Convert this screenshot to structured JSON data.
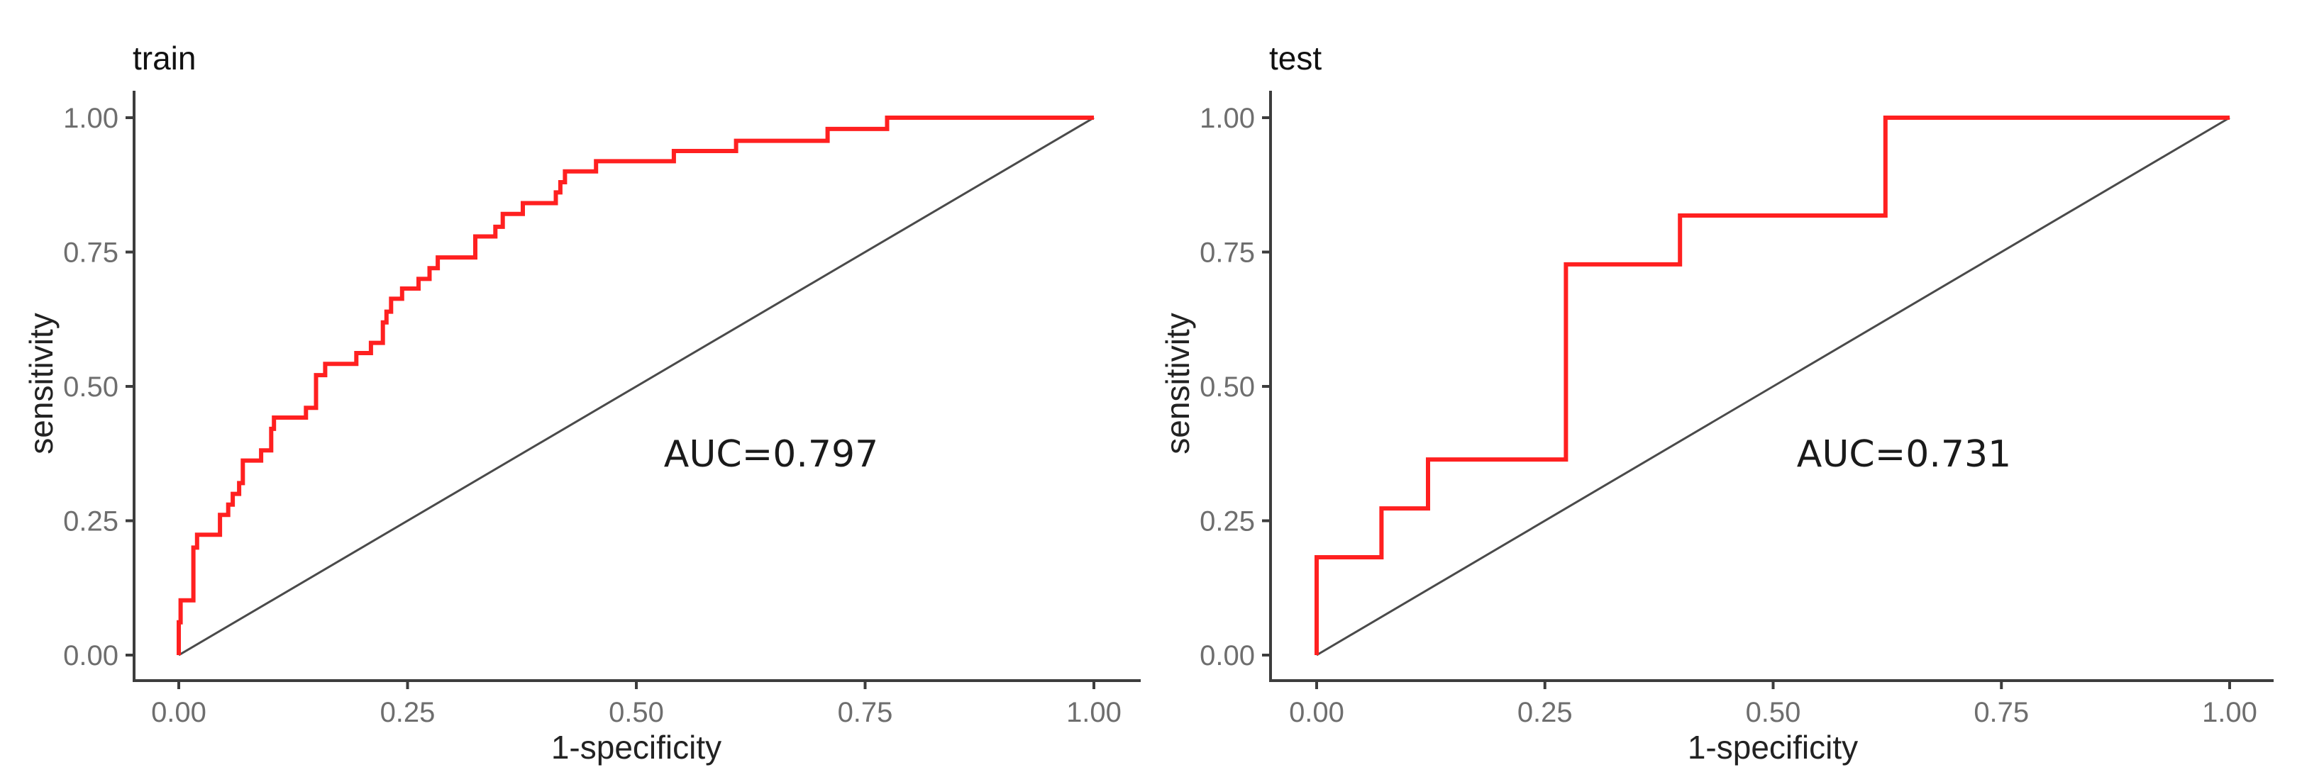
{
  "figure": {
    "background": "#ffffff",
    "roc_color": "#ff0000",
    "diagonal_color": "#4a4a4a",
    "axis_color": "#3d3d3d",
    "tick_label_color": "#6e6e6e"
  },
  "panels": [
    {
      "id": "train",
      "title": "train",
      "xlabel": "1-specificity",
      "ylabel": "sensitivity",
      "auc_label": "AUC=0.797",
      "x_ticks": [
        "0.00",
        "0.25",
        "0.50",
        "0.75",
        "1.00"
      ],
      "y_ticks": [
        "0.00",
        "0.25",
        "0.50",
        "0.75",
        "1.00"
      ]
    },
    {
      "id": "test",
      "title": "test",
      "xlabel": "1-specificity",
      "ylabel": "sensitivity",
      "auc_label": "AUC=0.731",
      "x_ticks": [
        "0.00",
        "0.25",
        "0.50",
        "0.75",
        "1.00"
      ],
      "y_ticks": [
        "0.00",
        "0.25",
        "0.50",
        "0.75",
        "1.00"
      ]
    }
  ],
  "chart_data": [
    {
      "type": "line",
      "title": "train",
      "xlabel": "1-specificity",
      "ylabel": "sensitivity",
      "xlim": [
        0,
        1
      ],
      "ylim": [
        0,
        1
      ],
      "x_ticks": [
        0,
        0.25,
        0.5,
        0.75,
        1.0
      ],
      "y_ticks": [
        0,
        0.25,
        0.5,
        0.75,
        1.0
      ],
      "grid": false,
      "legend": null,
      "annotations": [
        {
          "text": "AUC=0.797",
          "x": 0.67,
          "y": 0.37
        }
      ],
      "series": [
        {
          "name": "ROC",
          "color": "#ff0000",
          "step": true,
          "points": [
            [
              0.0,
              0.0
            ],
            [
              0.0,
              0.061
            ],
            [
              0.002,
              0.061
            ],
            [
              0.002,
              0.102
            ],
            [
              0.016,
              0.102
            ],
            [
              0.016,
              0.2
            ],
            [
              0.02,
              0.2
            ],
            [
              0.02,
              0.224
            ],
            [
              0.045,
              0.224
            ],
            [
              0.045,
              0.261
            ],
            [
              0.054,
              0.261
            ],
            [
              0.054,
              0.28
            ],
            [
              0.059,
              0.28
            ],
            [
              0.059,
              0.3
            ],
            [
              0.066,
              0.3
            ],
            [
              0.066,
              0.32
            ],
            [
              0.07,
              0.32
            ],
            [
              0.07,
              0.362
            ],
            [
              0.09,
              0.362
            ],
            [
              0.09,
              0.381
            ],
            [
              0.101,
              0.381
            ],
            [
              0.101,
              0.421
            ],
            [
              0.104,
              0.421
            ],
            [
              0.104,
              0.442
            ],
            [
              0.139,
              0.442
            ],
            [
              0.139,
              0.46
            ],
            [
              0.15,
              0.46
            ],
            [
              0.15,
              0.521
            ],
            [
              0.16,
              0.521
            ],
            [
              0.16,
              0.542
            ],
            [
              0.194,
              0.542
            ],
            [
              0.194,
              0.562
            ],
            [
              0.21,
              0.562
            ],
            [
              0.21,
              0.581
            ],
            [
              0.223,
              0.581
            ],
            [
              0.223,
              0.619
            ],
            [
              0.227,
              0.619
            ],
            [
              0.227,
              0.639
            ],
            [
              0.232,
              0.639
            ],
            [
              0.232,
              0.663
            ],
            [
              0.244,
              0.663
            ],
            [
              0.244,
              0.682
            ],
            [
              0.262,
              0.682
            ],
            [
              0.262,
              0.7
            ],
            [
              0.274,
              0.7
            ],
            [
              0.274,
              0.72
            ],
            [
              0.283,
              0.72
            ],
            [
              0.283,
              0.74
            ],
            [
              0.324,
              0.74
            ],
            [
              0.324,
              0.779
            ],
            [
              0.346,
              0.779
            ],
            [
              0.346,
              0.797
            ],
            [
              0.354,
              0.797
            ],
            [
              0.354,
              0.821
            ],
            [
              0.376,
              0.821
            ],
            [
              0.376,
              0.841
            ],
            [
              0.412,
              0.841
            ],
            [
              0.412,
              0.861
            ],
            [
              0.417,
              0.861
            ],
            [
              0.417,
              0.88
            ],
            [
              0.422,
              0.88
            ],
            [
              0.422,
              0.9
            ],
            [
              0.456,
              0.9
            ],
            [
              0.456,
              0.919
            ],
            [
              0.541,
              0.919
            ],
            [
              0.541,
              0.938
            ],
            [
              0.609,
              0.938
            ],
            [
              0.609,
              0.957
            ],
            [
              0.709,
              0.957
            ],
            [
              0.709,
              0.979
            ],
            [
              0.774,
              0.979
            ],
            [
              0.774,
              1.0
            ],
            [
              1.0,
              1.0
            ]
          ]
        },
        {
          "name": "reference",
          "color": "#4a4a4a",
          "points": [
            [
              0,
              0
            ],
            [
              1,
              1
            ]
          ]
        }
      ],
      "auc": 0.797
    },
    {
      "type": "line",
      "title": "test",
      "xlabel": "1-specificity",
      "ylabel": "sensitivity",
      "xlim": [
        0,
        1
      ],
      "ylim": [
        0,
        1
      ],
      "x_ticks": [
        0,
        0.25,
        0.5,
        0.75,
        1.0
      ],
      "y_ticks": [
        0,
        0.25,
        0.5,
        0.75,
        1.0
      ],
      "grid": false,
      "legend": null,
      "annotations": [
        {
          "text": "AUC=0.731",
          "x": 0.64,
          "y": 0.37
        }
      ],
      "series": [
        {
          "name": "ROC",
          "color": "#ff0000",
          "step": true,
          "points": [
            [
              0.0,
              0.0
            ],
            [
              0.0,
              0.182
            ],
            [
              0.071,
              0.182
            ],
            [
              0.071,
              0.273
            ],
            [
              0.122,
              0.273
            ],
            [
              0.122,
              0.364
            ],
            [
              0.273,
              0.364
            ],
            [
              0.273,
              0.727
            ],
            [
              0.398,
              0.727
            ],
            [
              0.398,
              0.818
            ],
            [
              0.623,
              0.818
            ],
            [
              0.623,
              1.0
            ],
            [
              1.0,
              1.0
            ]
          ]
        },
        {
          "name": "reference",
          "color": "#4a4a4a",
          "points": [
            [
              0,
              0
            ],
            [
              1,
              1
            ]
          ]
        }
      ],
      "auc": 0.731
    }
  ]
}
